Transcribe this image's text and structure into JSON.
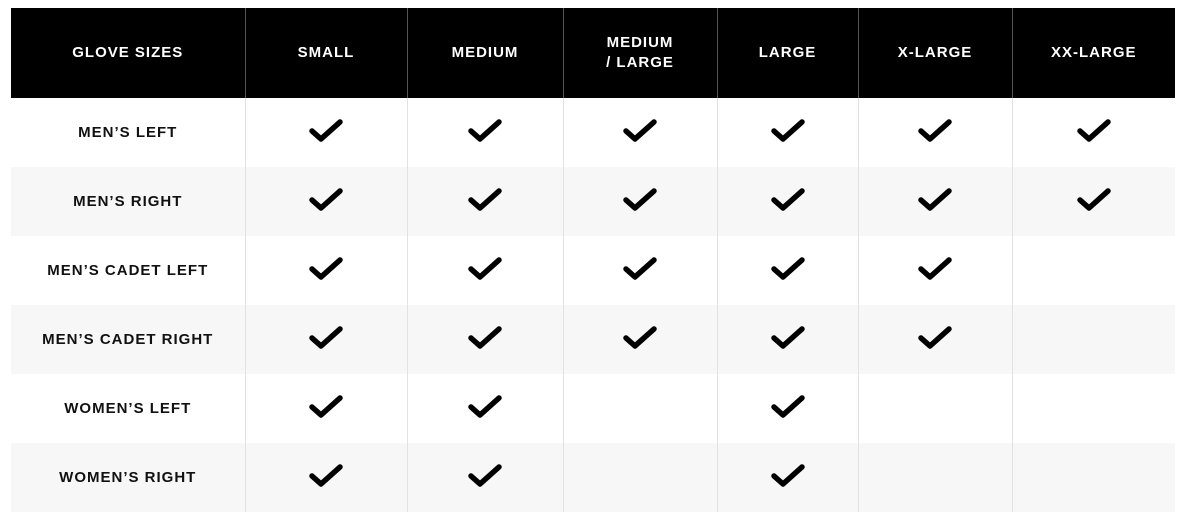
{
  "table": {
    "headers": [
      "GLOVE SIZES",
      "SMALL",
      "MEDIUM",
      "MEDIUM / LARGE",
      "LARGE",
      "X-LARGE",
      "XX-LARGE"
    ],
    "rows": [
      {
        "label": "MEN’S LEFT",
        "available": [
          true,
          true,
          true,
          true,
          true,
          true
        ]
      },
      {
        "label": "MEN’S RIGHT",
        "available": [
          true,
          true,
          true,
          true,
          true,
          true
        ]
      },
      {
        "label": "MEN’S CADET LEFT",
        "available": [
          true,
          true,
          true,
          true,
          true,
          false
        ]
      },
      {
        "label": "MEN’S CADET RIGHT",
        "available": [
          true,
          true,
          true,
          true,
          true,
          false
        ]
      },
      {
        "label": "WOMEN’S LEFT",
        "available": [
          true,
          true,
          false,
          true,
          false,
          false
        ]
      },
      {
        "label": "WOMEN’S RIGHT",
        "available": [
          true,
          true,
          false,
          true,
          false,
          false
        ]
      }
    ],
    "check_icon": "checkmark-icon",
    "colors": {
      "header_bg": "#000000",
      "header_text": "#ffffff",
      "stripe": "#f7f7f7"
    }
  }
}
